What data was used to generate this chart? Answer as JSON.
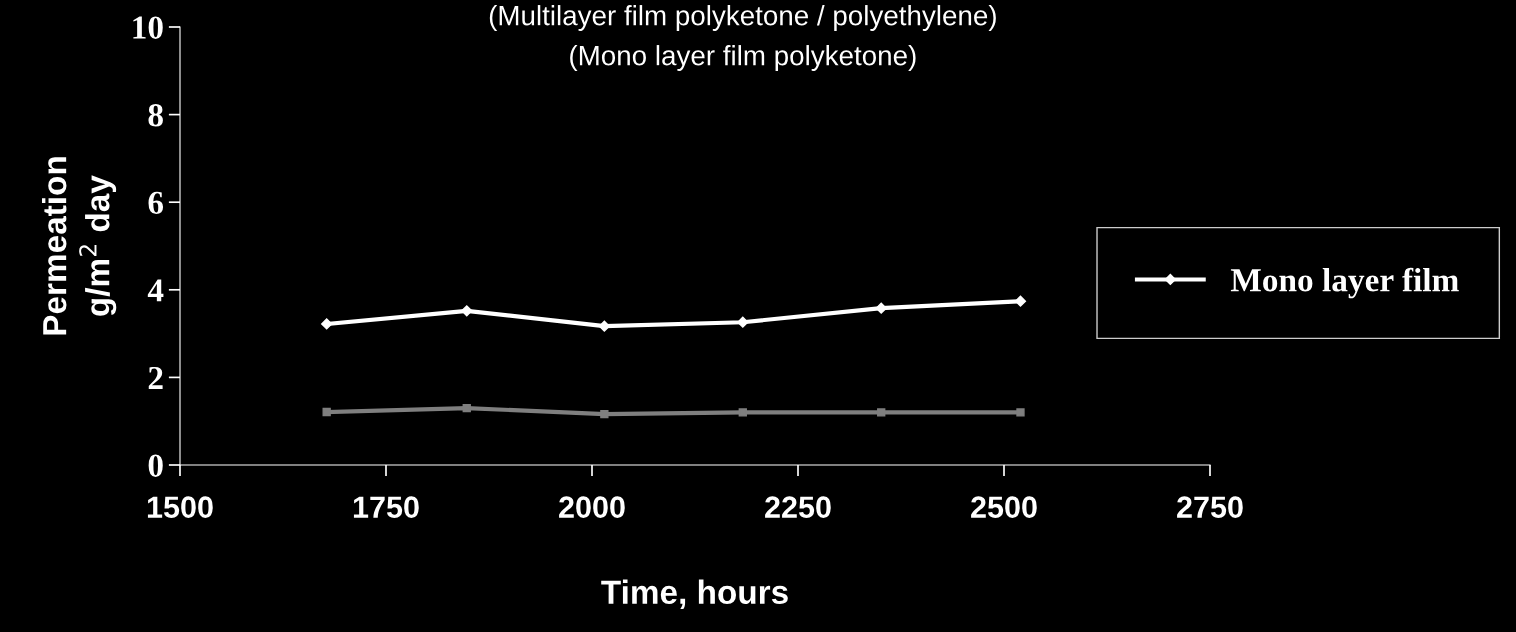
{
  "chart_data": {
    "type": "line",
    "title": "(Multilayer film polyketone / polyethylene)",
    "subtitle": "(Mono layer film polyketone)",
    "xlabel": "Time, hours",
    "ylabel": "Permeation\ng/m$^{2}$ day",
    "xlim": [
      1500,
      2750
    ],
    "xticks": [
      1500,
      1750,
      2000,
      2250,
      2500,
      2750
    ],
    "ylim": [
      0,
      10
    ],
    "yticks": [
      0,
      2,
      4,
      6,
      8,
      10
    ],
    "grid": false,
    "legend": "right",
    "series": [
      {
        "name": "Mono layer film",
        "color": "#ffffff",
        "marker": "diamond",
        "x": [
          1678,
          1848,
          2015,
          2183,
          2351,
          2520
        ],
        "values": [
          3.22,
          3.52,
          3.17,
          3.26,
          3.58,
          3.74
        ]
      },
      {
        "color": "#7f7f7f",
        "marker": "square",
        "x": [
          1678,
          1848,
          2015,
          2183,
          2351,
          2520
        ],
        "values": [
          1.21,
          1.3,
          1.16,
          1.2,
          1.2,
          1.2
        ]
      }
    ]
  }
}
